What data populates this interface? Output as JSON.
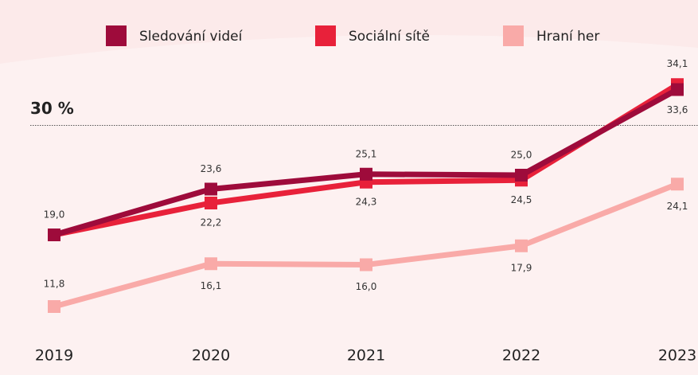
{
  "chart_data": {
    "type": "line",
    "categories": [
      "2019",
      "2020",
      "2021",
      "2022",
      "2023"
    ],
    "series": [
      {
        "name": "Sledování videí",
        "color": "#9e0b3b",
        "values": [
          19.0,
          23.6,
          25.1,
          25.0,
          33.6
        ],
        "value_labels": [
          "19,0",
          "23,6",
          "25,1",
          "25,0",
          "33,6"
        ]
      },
      {
        "name": "Sociální sítě",
        "color": "#e8213a",
        "values": [
          19.0,
          22.2,
          24.3,
          24.5,
          34.1
        ],
        "value_labels": [
          null,
          "22,2",
          "24,3",
          "24,5",
          "34,1"
        ]
      },
      {
        "name": "Hraní her",
        "color": "#f9aaa8",
        "values": [
          11.8,
          16.1,
          16.0,
          17.9,
          24.1
        ],
        "value_labels": [
          "11,8",
          "16,1",
          "16,0",
          "17,9",
          "24,1"
        ]
      }
    ],
    "ylim": [
      8,
      36
    ],
    "reference_line": {
      "value": 30,
      "label": "30 %"
    }
  }
}
